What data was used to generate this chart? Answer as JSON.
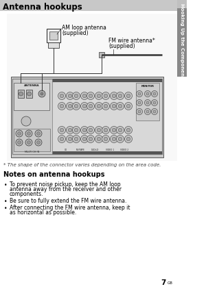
{
  "title": "Antenna hookups",
  "title_bg": "#c8c8c8",
  "title_color": "#000000",
  "title_fontsize": 8.5,
  "page_bg": "#ffffff",
  "footnote": "* The shape of the connector varies depending on the area code.",
  "footnote_fontsize": 5.0,
  "section_title": "Notes on antenna hookups",
  "section_fontsize": 7.0,
  "bullets": [
    "To prevent noise pickup, keep the AM loop\nantenna away from the receiver and other\ncomponents.",
    "Be sure to fully extend the FM wire antenna.",
    "After connecting the FM wire antenna, keep it\nas horizontal as possible."
  ],
  "bullet_fontsize": 5.5,
  "sidebar_text": "Hooking Up the Components",
  "sidebar_fontsize": 5.0,
  "sidebar_bg": "#888888",
  "sidebar_tab_bg": "#aaaaaa",
  "page_number": "7",
  "page_number_super": "GB",
  "am_label_line1": "AM loop antenna",
  "am_label_line2": "(supplied)",
  "fm_label_line1": "FM wire antenna*",
  "fm_label_line2": "(supplied)",
  "label_fontsize": 5.5,
  "diagram_bg": "#e8e8e8",
  "receiver_bg": "#d0d0d0",
  "connector_color": "#b0b0b0"
}
